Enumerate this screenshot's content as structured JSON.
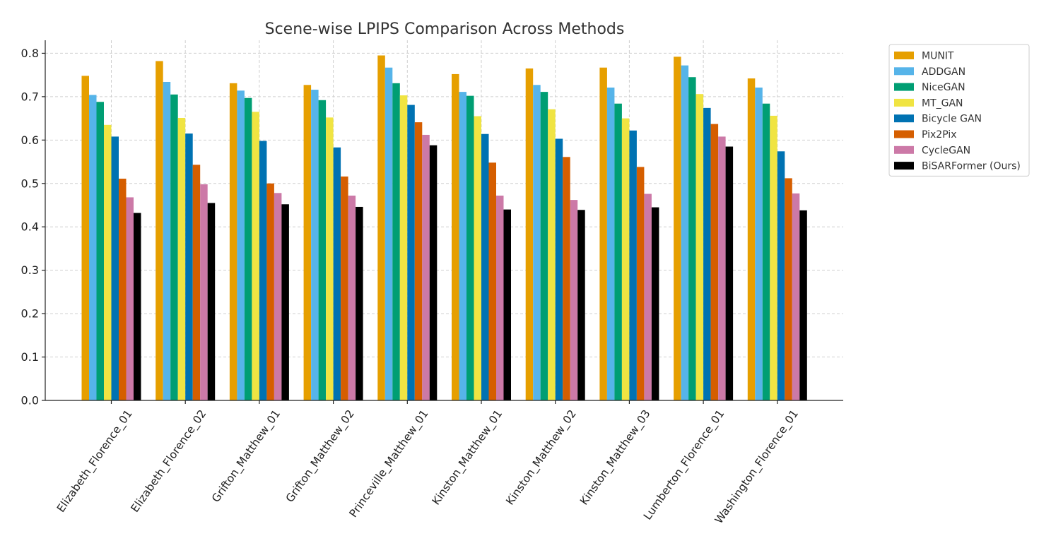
{
  "chart_data": {
    "type": "bar",
    "title": "Scene-wise LPIPS Comparison Across Methods",
    "xlabel": "",
    "ylabel": "",
    "ylim": [
      0,
      0.83
    ],
    "yticks": [
      "0.0",
      "0.1",
      "0.2",
      "0.3",
      "0.4",
      "0.5",
      "0.6",
      "0.7",
      "0.8"
    ],
    "grid": true,
    "legend_position": "outside-top-right",
    "categories": [
      "Elizabeth_Florence_01",
      "Elizabeth_Florence_02",
      "Grifton_Matthew_01",
      "Grifton_Matthew_02",
      "Princeville_Matthew_01",
      "Kinston_Matthew_01",
      "Kinston_Matthew_02",
      "Kinston_Matthew_03",
      "Lumberton_Florence_01",
      "Washington_Florence_01"
    ],
    "series": [
      {
        "name": "MUNIT",
        "color": "#E69F00",
        "values": [
          0.748,
          0.782,
          0.731,
          0.727,
          0.795,
          0.752,
          0.765,
          0.767,
          0.792,
          0.742
        ]
      },
      {
        "name": "ADDGAN",
        "color": "#56B4E9",
        "values": [
          0.704,
          0.734,
          0.714,
          0.716,
          0.767,
          0.711,
          0.727,
          0.721,
          0.772,
          0.721
        ]
      },
      {
        "name": "NiceGAN",
        "color": "#009E73",
        "values": [
          0.688,
          0.705,
          0.697,
          0.692,
          0.731,
          0.702,
          0.711,
          0.684,
          0.745,
          0.684
        ]
      },
      {
        "name": "MT_GAN",
        "color": "#F0E442",
        "values": [
          0.635,
          0.651,
          0.665,
          0.652,
          0.703,
          0.655,
          0.671,
          0.65,
          0.706,
          0.656
        ]
      },
      {
        "name": "Bicycle GAN",
        "color": "#0072B2",
        "values": [
          0.608,
          0.615,
          0.598,
          0.583,
          0.681,
          0.614,
          0.603,
          0.622,
          0.674,
          0.574
        ]
      },
      {
        "name": "Pix2Pix",
        "color": "#D55E00",
        "values": [
          0.511,
          0.543,
          0.5,
          0.516,
          0.641,
          0.548,
          0.561,
          0.538,
          0.637,
          0.512
        ]
      },
      {
        "name": "CycleGAN",
        "color": "#CC79A7",
        "values": [
          0.468,
          0.498,
          0.478,
          0.472,
          0.612,
          0.472,
          0.462,
          0.476,
          0.608,
          0.477
        ]
      },
      {
        "name": "BiSARFormer (Ours)",
        "color": "#000000",
        "values": [
          0.432,
          0.455,
          0.452,
          0.446,
          0.588,
          0.44,
          0.439,
          0.445,
          0.585,
          0.438
        ]
      }
    ]
  }
}
